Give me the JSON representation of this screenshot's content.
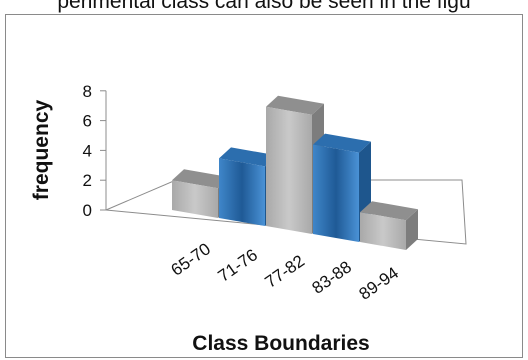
{
  "caption": "perimental class can also be seen in the figu",
  "chart_data": {
    "type": "bar",
    "title": "",
    "xlabel": "Class Boundaries",
    "ylabel": "frequency",
    "categories": [
      "65-70",
      "71-76",
      "77-82",
      "83-88",
      "89-94"
    ],
    "values": [
      2,
      4,
      8,
      6,
      2
    ],
    "ylim": [
      0,
      8
    ],
    "yticks": [
      0,
      2,
      4,
      6,
      8
    ],
    "grid": false,
    "three_d": true,
    "bar_colors": [
      "#b0b0b0",
      "#3a7ebf",
      "#b0b0b0",
      "#3a7ebf",
      "#b0b0b0"
    ]
  }
}
